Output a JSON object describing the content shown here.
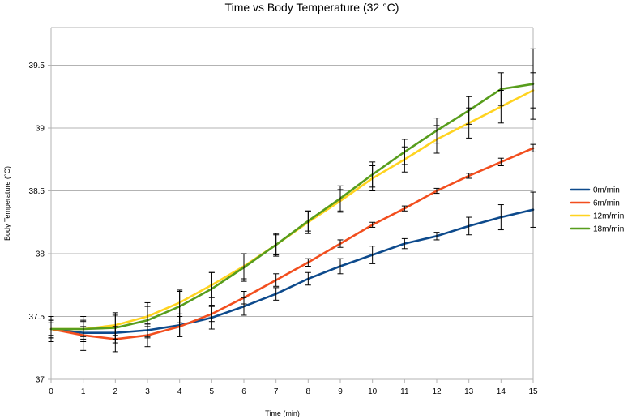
{
  "chart_data": {
    "type": "line",
    "title": "Time vs Body Temperature (32 °C)",
    "xlabel": "Time (min)",
    "ylabel": "Body Temperature (°C)",
    "x": [
      0,
      1,
      2,
      3,
      4,
      5,
      6,
      7,
      8,
      9,
      10,
      11,
      12,
      13,
      14,
      15
    ],
    "xlim": [
      0,
      15
    ],
    "ylim": [
      37,
      39.8
    ],
    "yticks": [
      "37",
      "37.5",
      "38",
      "38.5",
      "39",
      "39.5"
    ],
    "ytick_values": [
      37,
      37.5,
      38,
      38.5,
      39,
      39.5
    ],
    "xticks": [
      "0",
      "1",
      "2",
      "3",
      "4",
      "5",
      "6",
      "7",
      "8",
      "9",
      "10",
      "11",
      "12",
      "13",
      "14",
      "15"
    ],
    "grid": "horizontal",
    "legend_position": "right",
    "series": [
      {
        "name": "0m/min",
        "color": "#0d4a8c",
        "values": [
          37.4,
          37.37,
          37.37,
          37.39,
          37.43,
          37.49,
          37.58,
          37.68,
          37.8,
          37.9,
          37.99,
          38.08,
          38.14,
          38.22,
          38.29,
          38.35
        ],
        "errors": [
          0.07,
          0.05,
          0.05,
          0.05,
          0.09,
          0.09,
          0.07,
          0.05,
          0.05,
          0.06,
          0.07,
          0.04,
          0.03,
          0.07,
          0.1,
          0.14
        ]
      },
      {
        "name": "6m/min",
        "color": "#f24e1e",
        "values": [
          37.4,
          37.35,
          37.32,
          37.35,
          37.42,
          37.52,
          37.65,
          37.79,
          37.93,
          38.08,
          38.23,
          38.36,
          38.5,
          38.62,
          38.73,
          38.84
        ],
        "errors": [
          0.1,
          0.12,
          0.1,
          0.09,
          0.08,
          0.06,
          0.05,
          0.05,
          0.03,
          0.03,
          0.02,
          0.02,
          0.02,
          0.02,
          0.03,
          0.03
        ]
      },
      {
        "name": "12m/min",
        "color": "#ffd320",
        "values": [
          37.4,
          37.4,
          37.43,
          37.5,
          37.61,
          37.75,
          37.9,
          38.07,
          38.25,
          38.42,
          38.6,
          38.75,
          38.91,
          39.04,
          39.17,
          39.3
        ],
        "errors": [
          0.05,
          0.06,
          0.08,
          0.08,
          0.09,
          0.1,
          0.1,
          0.09,
          0.09,
          0.09,
          0.1,
          0.1,
          0.11,
          0.12,
          0.13,
          0.14
        ]
      },
      {
        "name": "18m/min",
        "color": "#579d1c",
        "values": [
          37.4,
          37.4,
          37.41,
          37.47,
          37.58,
          37.72,
          37.89,
          38.07,
          38.26,
          38.44,
          38.63,
          38.81,
          38.98,
          39.14,
          39.31,
          39.35
        ],
        "errors": [
          0.07,
          0.1,
          0.12,
          0.14,
          0.13,
          0.13,
          0.11,
          0.08,
          0.08,
          0.1,
          0.1,
          0.1,
          0.1,
          0.11,
          0.13,
          0.28
        ]
      }
    ]
  }
}
